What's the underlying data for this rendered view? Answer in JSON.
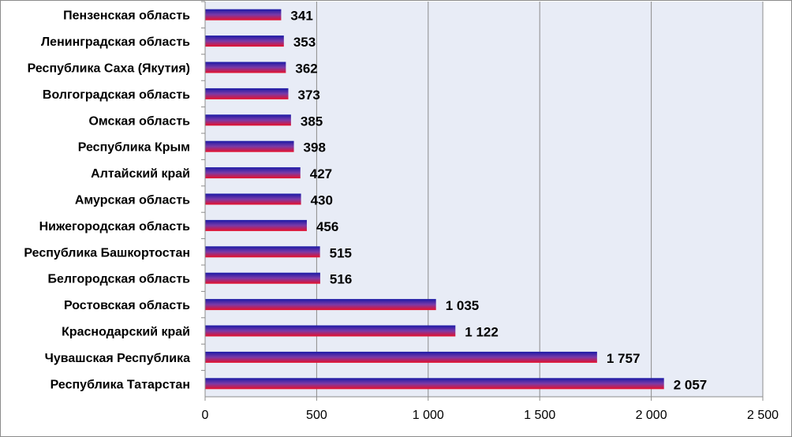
{
  "chart_data": {
    "type": "bar",
    "orientation": "horizontal",
    "categories": [
      "Пензенская область",
      "Ленинградская область",
      "Республика Саха (Якутия)",
      "Волгоградская  область",
      "Омская область",
      "Республика Крым",
      "Алтайский край",
      "Амурская область",
      "Нижегородская  область",
      "Республика Башкортостан",
      "Белгородская  область",
      "Ростовская  область",
      "Краснодарский край",
      "Чувашская  Республика",
      "Республика Татарстан"
    ],
    "values": [
      341,
      353,
      362,
      373,
      385,
      398,
      427,
      430,
      456,
      515,
      516,
      1035,
      1122,
      1757,
      2057
    ],
    "value_labels": [
      "341",
      "353",
      "362",
      "373",
      "385",
      "398",
      "427",
      "430",
      "456",
      "515",
      "516",
      "1 035",
      "1 122",
      "1 757",
      "2 057"
    ],
    "xlim": [
      0,
      2500
    ],
    "xticks": [
      0,
      500,
      1000,
      1500,
      2000,
      2500
    ],
    "xtick_labels": [
      "0",
      "500",
      "1 000",
      "1 500",
      "2 000",
      "2 500"
    ],
    "grid": "vertical",
    "legend": "none",
    "colors": {
      "plot_background": "#e8ecf6",
      "gridline": "#8c8c8c",
      "bar_top": "#1a1aa6",
      "bar_mid": "#7a3aa8",
      "bar_bottom": "#e8102a"
    }
  }
}
